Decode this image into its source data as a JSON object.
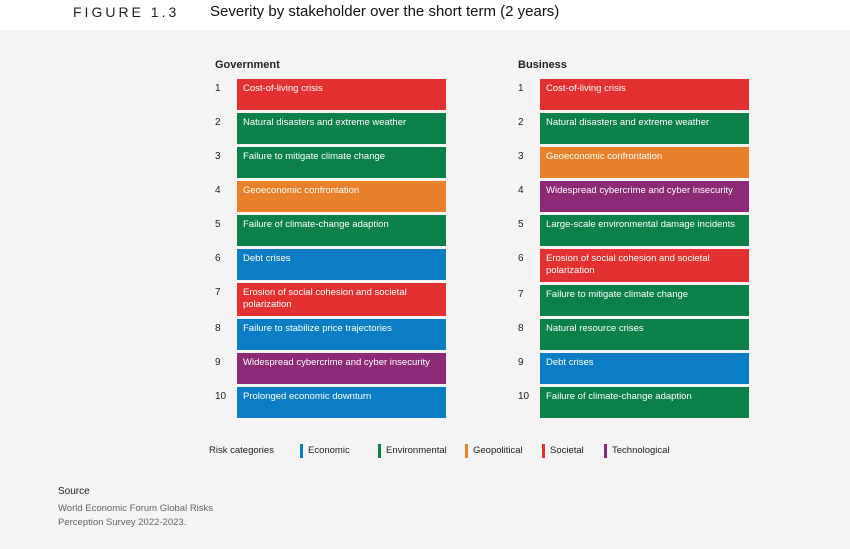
{
  "header": {
    "figure": "FIGURE 1.3",
    "title": "Severity by stakeholder over the short term (2 years)"
  },
  "columns": [
    {
      "title": "Government",
      "rows": [
        {
          "rank": 1,
          "label": "Cost-of-living crisis",
          "category": "Societal"
        },
        {
          "rank": 2,
          "label": "Natural disasters and extreme weather",
          "category": "Environmental"
        },
        {
          "rank": 3,
          "label": "Failure to mitigate climate change",
          "category": "Environmental"
        },
        {
          "rank": 4,
          "label": "Geoeconomic confrontation",
          "category": "Geopolitical"
        },
        {
          "rank": 5,
          "label": "Failure of climate-change adaption",
          "category": "Environmental"
        },
        {
          "rank": 6,
          "label": "Debt crises",
          "category": "Economic"
        },
        {
          "rank": 7,
          "label": "Erosion of social cohesion and societal polarization",
          "category": "Societal"
        },
        {
          "rank": 8,
          "label": "Failure to stabilize price trajectories",
          "category": "Economic"
        },
        {
          "rank": 9,
          "label": "Widespread cybercrime and cyber insecurity",
          "category": "Technological"
        },
        {
          "rank": 10,
          "label": "Prolonged economic downturn",
          "category": "Economic"
        }
      ]
    },
    {
      "title": "Business",
      "rows": [
        {
          "rank": 1,
          "label": "Cost-of-living crisis",
          "category": "Societal"
        },
        {
          "rank": 2,
          "label": "Natural disasters and extreme weather",
          "category": "Environmental"
        },
        {
          "rank": 3,
          "label": "Geoeconomic confrontation",
          "category": "Geopolitical"
        },
        {
          "rank": 4,
          "label": "Widespread cybercrime and cyber insecurity",
          "category": "Technological"
        },
        {
          "rank": 5,
          "label": "Large-scale environmental damage incidents",
          "category": "Environmental"
        },
        {
          "rank": 6,
          "label": "Erosion of social cohesion and societal polarization",
          "category": "Societal"
        },
        {
          "rank": 7,
          "label": "Failure to mitigate climate change",
          "category": "Environmental"
        },
        {
          "rank": 8,
          "label": "Natural resource crises",
          "category": "Environmental"
        },
        {
          "rank": 9,
          "label": "Debt crises",
          "category": "Economic"
        },
        {
          "rank": 10,
          "label": "Failure of climate-change adaption",
          "category": "Environmental"
        }
      ]
    }
  ],
  "legend": {
    "label": "Risk categories",
    "items": [
      {
        "name": "Economic",
        "color": "#0b7dc4"
      },
      {
        "name": "Environmental",
        "color": "#0b8049"
      },
      {
        "name": "Geopolitical",
        "color": "#e8812a"
      },
      {
        "name": "Societal",
        "color": "#e23130"
      },
      {
        "name": "Technological",
        "color": "#8c2a78"
      }
    ]
  },
  "source": {
    "title": "Source",
    "text": "World Economic Forum Global Risks Perception Survey 2022-2023."
  }
}
